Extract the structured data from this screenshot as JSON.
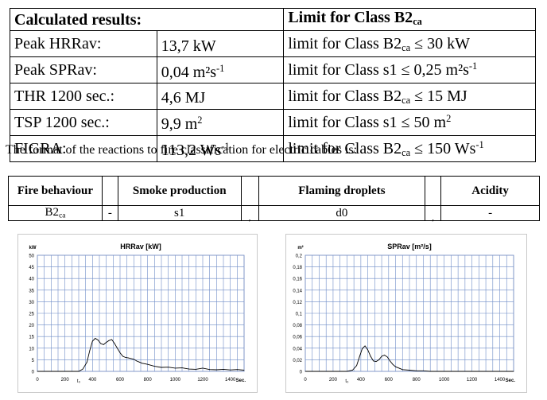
{
  "results_table": {
    "header": {
      "left": "Calculated results:",
      "right_main": "Limit for Class B2",
      "right_sub": "ca"
    },
    "rows": [
      {
        "param": "Peak HRRav:",
        "value": "13,7 kW",
        "value_sup": "",
        "limit_pre": "limit for Class B2",
        "limit_sub": "ca",
        "limit_post": " ≤ 30 kW",
        "limit_sup": ""
      },
      {
        "param": "Peak SPRav:",
        "value": "0,04 m²s",
        "value_sup": "-1",
        "limit_pre": "limit for Class s1",
        "limit_sub": "",
        "limit_post": " ≤ 0,25 m²s",
        "limit_sup": "-1"
      },
      {
        "param": "THR 1200 sec.:",
        "value": "4,6 MJ",
        "value_sup": "",
        "limit_pre": "limit for Class B2",
        "limit_sub": "ca",
        "limit_post": " ≤ 15 MJ",
        "limit_sup": ""
      },
      {
        "param": "TSP 1200 sec.:",
        "value": "9,9 m",
        "value_sup": "2",
        "limit_pre": "limit for Class s1",
        "limit_sub": "",
        "limit_post": " ≤ 50 m",
        "limit_sup": "2"
      },
      {
        "param": "FIGRA:",
        "value": "113,2 Ws",
        "value_sup": "-1",
        "limit_pre": "limit for Class B2",
        "limit_sub": "ca",
        "limit_post": " ≤ 150 Ws",
        "limit_sup": "-1"
      }
    ]
  },
  "caption": "The format of the reactions to fire classification for electric cables is:",
  "classification": {
    "headers": {
      "fire": "Fire behaviour",
      "smoke": "Smoke production",
      "droplets": "Flaming droplets",
      "acidity": "Acidity"
    },
    "values": {
      "fire_main": "B2",
      "fire_sub": "ca",
      "dash": "-",
      "smoke": "s1",
      "comma1": ",",
      "droplets": "d0",
      "comma2": ",",
      "acidity": "-"
    }
  },
  "chart_data": [
    {
      "type": "line",
      "title": "HRRav [kW]",
      "ylabel": "kW",
      "xlabel": "Sec.",
      "x_marker": "t₀",
      "xlim": [
        0,
        1500
      ],
      "ylim": [
        0,
        50
      ],
      "xticks": [
        0,
        200,
        400,
        600,
        800,
        1000,
        1200,
        1400
      ],
      "yticks": [
        0,
        5,
        10,
        15,
        20,
        25,
        30,
        35,
        40,
        45,
        50
      ],
      "ytick_labels": [
        "0",
        "5",
        "10",
        "15",
        "20",
        "25",
        "30",
        "35",
        "40",
        "45",
        "50"
      ],
      "grid": true,
      "color": "#000000",
      "x": [
        0,
        50,
        100,
        150,
        200,
        250,
        300,
        330,
        360,
        380,
        400,
        420,
        440,
        460,
        480,
        500,
        520,
        540,
        560,
        580,
        600,
        620,
        640,
        660,
        680,
        700,
        720,
        740,
        760,
        780,
        800,
        850,
        900,
        950,
        1000,
        1050,
        1100,
        1150,
        1200,
        1250,
        1300,
        1350,
        1400,
        1450,
        1500
      ],
      "y": [
        0,
        0,
        0,
        0,
        0,
        0,
        0,
        1,
        4,
        9,
        13,
        14.2,
        13.5,
        12,
        11.5,
        12.5,
        13.3,
        13.7,
        12,
        10,
        8,
        6.5,
        6,
        5.8,
        5.5,
        5.2,
        4.5,
        4,
        3.5,
        3.3,
        3,
        2.2,
        1.7,
        1.8,
        1.4,
        1.5,
        1,
        0.9,
        1.4,
        0.8,
        0.7,
        0.9,
        0.6,
        0.8,
        0.5
      ]
    },
    {
      "type": "line",
      "title": "SPRav [m²/s]",
      "ylabel": "m²",
      "xlabel": "Sec.",
      "x_marker": "t₀",
      "xlim": [
        0,
        1500
      ],
      "ylim": [
        0,
        0.2
      ],
      "xticks": [
        0,
        200,
        400,
        600,
        800,
        1000,
        1200,
        1400
      ],
      "yticks": [
        0,
        0.02,
        0.04,
        0.06,
        0.08,
        0.1,
        0.12,
        0.14,
        0.16,
        0.18,
        0.2
      ],
      "ytick_labels": [
        "0",
        "0,02",
        "0,04",
        "0,06",
        "0,08",
        "0,1",
        "0,12",
        "0,14",
        "0,16",
        "0,18",
        "0,2"
      ],
      "grid": true,
      "color": "#000000",
      "x": [
        0,
        50,
        100,
        150,
        200,
        250,
        300,
        340,
        370,
        390,
        410,
        430,
        450,
        470,
        490,
        510,
        530,
        550,
        570,
        590,
        610,
        630,
        650,
        680,
        700,
        750,
        800,
        850,
        900,
        1000,
        1100,
        1200,
        1300,
        1400,
        1500
      ],
      "y": [
        0,
        0,
        0,
        0,
        0,
        0,
        0,
        0.002,
        0.01,
        0.025,
        0.039,
        0.044,
        0.037,
        0.026,
        0.018,
        0.017,
        0.02,
        0.026,
        0.028,
        0.025,
        0.018,
        0.012,
        0.008,
        0.005,
        0.003,
        0.002,
        0.001,
        0.001,
        0,
        0,
        0,
        0,
        0,
        0,
        0
      ]
    }
  ]
}
